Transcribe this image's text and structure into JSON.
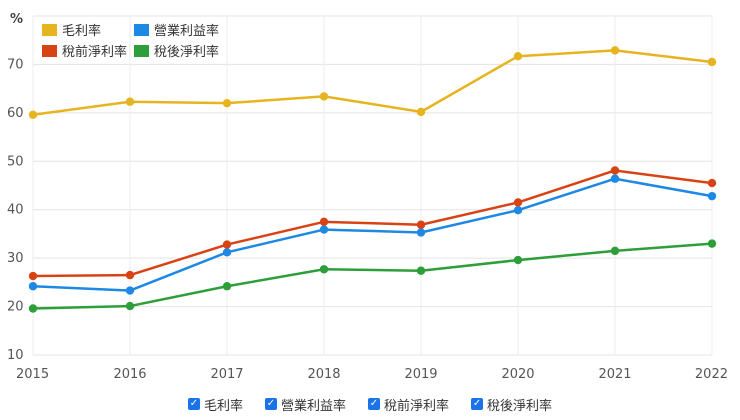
{
  "chart_data": {
    "type": "line",
    "unit_label": "%",
    "x": [
      "2015",
      "2016",
      "2017",
      "2018",
      "2019",
      "2020",
      "2021",
      "2022"
    ],
    "ylim": [
      10,
      80
    ],
    "yticks": [
      "10",
      "20",
      "30",
      "40",
      "50",
      "60",
      "70"
    ],
    "grid": true,
    "legend_placement": "top-left",
    "series": [
      {
        "name": "毛利率",
        "color": "#e6b41e",
        "values": [
          59.6,
          62.3,
          62.0,
          63.4,
          60.2,
          71.7,
          72.9,
          70.5
        ]
      },
      {
        "name": "營業利益率",
        "color": "#1e88e5",
        "values": [
          24.2,
          23.3,
          31.2,
          35.9,
          35.3,
          39.9,
          46.4,
          42.8
        ]
      },
      {
        "name": "稅前淨利率",
        "color": "#d84315",
        "values": [
          26.3,
          26.5,
          32.8,
          37.5,
          36.9,
          41.5,
          48.1,
          45.5
        ]
      },
      {
        "name": "稅後淨利率",
        "color": "#2e9e3a",
        "values": [
          19.6,
          20.1,
          24.2,
          27.7,
          27.4,
          29.6,
          31.5,
          33.0
        ]
      }
    ]
  },
  "bottom_legend": [
    {
      "label": "毛利率",
      "checked": true
    },
    {
      "label": "營業利益率",
      "checked": true
    },
    {
      "label": "稅前淨利率",
      "checked": true
    },
    {
      "label": "稅後淨利率",
      "checked": true
    }
  ],
  "checkbox_icon": "check-icon"
}
